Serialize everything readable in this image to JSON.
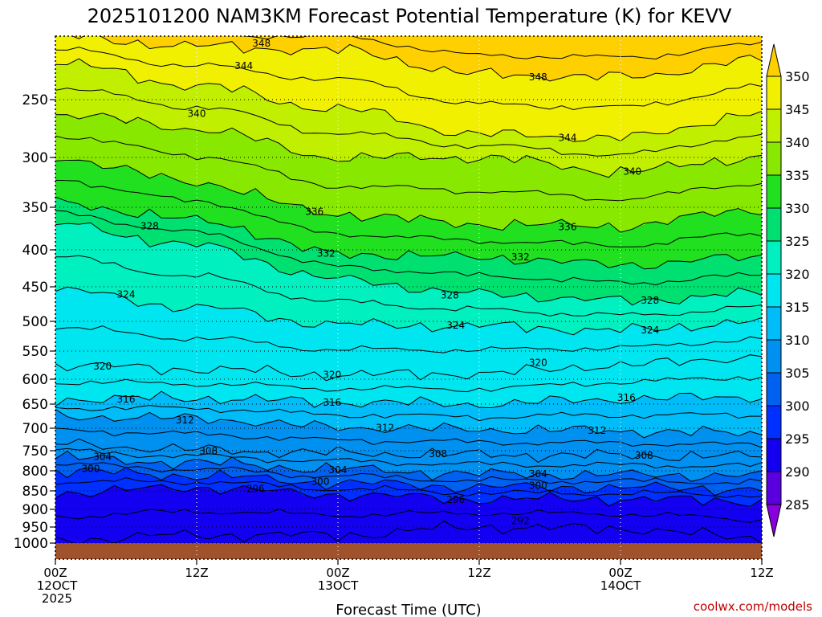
{
  "chart_data": {
    "type": "heatmap",
    "title": "2025101200 NAM3KM Forecast Potential Temperature (K) for KEVV",
    "xlabel": "Forecast Time (UTC)",
    "ylabel": "",
    "y_axis": "pressure (hPa), reversed",
    "y_ticks": [
      "250",
      "300",
      "350",
      "400",
      "450",
      "500",
      "550",
      "600",
      "650",
      "700",
      "750",
      "800",
      "850",
      "900",
      "950",
      "1000"
    ],
    "x_ticks": [
      {
        "hour": 0,
        "lines": [
          "00Z",
          "12OCT",
          "2025"
        ]
      },
      {
        "hour": 12,
        "lines": [
          "12Z"
        ]
      },
      {
        "hour": 24,
        "lines": [
          "00Z",
          "13OCT"
        ]
      },
      {
        "hour": 36,
        "lines": [
          "12Z"
        ]
      },
      {
        "hour": 48,
        "lines": [
          "00Z",
          "14OCT"
        ]
      },
      {
        "hour": 60,
        "lines": [
          "12Z"
        ]
      }
    ],
    "colorbar": {
      "levels": [
        285,
        290,
        295,
        300,
        305,
        310,
        315,
        320,
        325,
        330,
        335,
        340,
        345,
        350
      ],
      "labels": [
        "285",
        "290",
        "295",
        "300",
        "305",
        "310",
        "315",
        "320",
        "325",
        "330",
        "335",
        "340",
        "345",
        "350"
      ],
      "colors": [
        "#8800dd",
        "#5a00e0",
        "#1400f0",
        "#0030ff",
        "#0060f0",
        "#0090f0",
        "#00bcf8",
        "#00e6f0",
        "#00f0c0",
        "#00e070",
        "#20e020",
        "#88e800",
        "#c0f000",
        "#f0f000",
        "#ffd000"
      ]
    },
    "isotherm_labels": [
      {
        "text": "348",
        "hour": 17.5,
        "p": 210
      },
      {
        "text": "348",
        "hour": 41,
        "p": 234
      },
      {
        "text": "344",
        "hour": 16,
        "p": 226
      },
      {
        "text": "344",
        "hour": 43.5,
        "p": 283
      },
      {
        "text": "340",
        "hour": 12,
        "p": 262
      },
      {
        "text": "340",
        "hour": 49,
        "p": 314
      },
      {
        "text": "336",
        "hour": 22,
        "p": 355
      },
      {
        "text": "336",
        "hour": 43.5,
        "p": 373
      },
      {
        "text": "332",
        "hour": 23,
        "p": 405
      },
      {
        "text": "332",
        "hour": 39.5,
        "p": 410
      },
      {
        "text": "328",
        "hour": 8,
        "p": 372
      },
      {
        "text": "328",
        "hour": 33.5,
        "p": 462
      },
      {
        "text": "328",
        "hour": 50.5,
        "p": 470
      },
      {
        "text": "324",
        "hour": 6,
        "p": 461
      },
      {
        "text": "324",
        "hour": 34,
        "p": 507
      },
      {
        "text": "324",
        "hour": 50.5,
        "p": 515
      },
      {
        "text": "320",
        "hour": 4,
        "p": 577
      },
      {
        "text": "320",
        "hour": 23.5,
        "p": 592
      },
      {
        "text": "320",
        "hour": 41,
        "p": 571
      },
      {
        "text": "316",
        "hour": 6,
        "p": 640
      },
      {
        "text": "316",
        "hour": 23.5,
        "p": 647
      },
      {
        "text": "316",
        "hour": 48.5,
        "p": 637
      },
      {
        "text": "312",
        "hour": 11,
        "p": 683
      },
      {
        "text": "312",
        "hour": 28,
        "p": 699
      },
      {
        "text": "312",
        "hour": 46,
        "p": 705
      },
      {
        "text": "308",
        "hour": 13,
        "p": 751
      },
      {
        "text": "308",
        "hour": 32.5,
        "p": 758
      },
      {
        "text": "308",
        "hour": 50,
        "p": 762
      },
      {
        "text": "304",
        "hour": 4,
        "p": 765
      },
      {
        "text": "304",
        "hour": 24,
        "p": 798
      },
      {
        "text": "304",
        "hour": 41,
        "p": 808
      },
      {
        "text": "300",
        "hour": 3,
        "p": 795
      },
      {
        "text": "300",
        "hour": 22.5,
        "p": 827
      },
      {
        "text": "300",
        "hour": 41,
        "p": 837
      },
      {
        "text": "296",
        "hour": 17,
        "p": 845
      },
      {
        "text": "296",
        "hour": 34,
        "p": 874
      },
      {
        "text": "292",
        "hour": 39.5,
        "p": 933
      }
    ]
  },
  "credit": "coolwx.com/models"
}
